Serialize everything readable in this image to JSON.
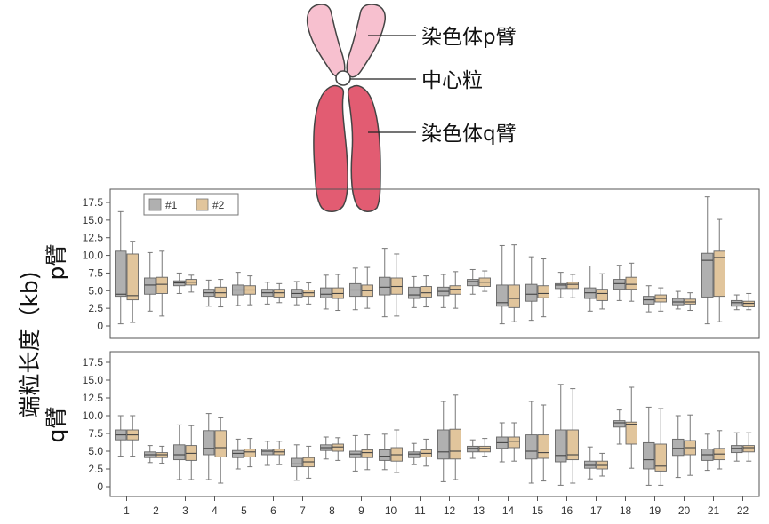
{
  "diagram": {
    "labels": {
      "p_arm": "染色体p臂",
      "centromere": "中心粒",
      "q_arm": "染色体q臂"
    },
    "colors": {
      "p_arm": "#f7c0cf",
      "q_arm": "#e25c72",
      "outline": "#444444"
    }
  },
  "axis": {
    "ylabel": "端粒长度（kb)"
  },
  "chart_data": [
    {
      "type": "box",
      "panel_label": "p臂",
      "categories": [
        "1",
        "2",
        "3",
        "4",
        "5",
        "6",
        "7",
        "8",
        "9",
        "10",
        "11",
        "12",
        "13",
        "14",
        "15",
        "16",
        "17",
        "18",
        "19",
        "20",
        "21",
        "22"
      ],
      "ylim": [
        0,
        18.5
      ],
      "yticks": [
        0,
        2.5,
        5.0,
        7.5,
        10.0,
        12.5,
        15.0,
        17.5
      ],
      "ytick_labels": [
        "0",
        "2.5",
        "5.0",
        "7.5",
        "10.0",
        "12.5",
        "15.0",
        "17.5"
      ],
      "grid": false,
      "legend": {
        "position": "top-left",
        "entries": [
          "#1",
          "#2"
        ]
      },
      "series": [
        {
          "name": "#1",
          "color": "#b0b0b0",
          "boxes": [
            [
              0.3,
              4.2,
              4.5,
              10.6,
              16.2
            ],
            [
              2.1,
              4.5,
              5.8,
              6.8,
              10.4
            ],
            [
              4.6,
              5.7,
              6.1,
              6.4,
              7.5
            ],
            [
              2.8,
              4.2,
              4.7,
              5.2,
              6.5
            ],
            [
              2.9,
              4.4,
              5.1,
              5.8,
              7.6
            ],
            [
              3.1,
              4.2,
              4.7,
              5.2,
              6.2
            ],
            [
              3.0,
              4.1,
              4.6,
              5.2,
              6.3
            ],
            [
              2.4,
              4.0,
              4.5,
              5.4,
              7.2
            ],
            [
              2.3,
              4.2,
              5.1,
              6.0,
              8.2
            ],
            [
              1.3,
              4.4,
              5.5,
              6.9,
              11.0
            ],
            [
              2.6,
              3.9,
              4.4,
              5.5,
              7.0
            ],
            [
              2.6,
              4.3,
              4.9,
              5.5,
              7.3
            ],
            [
              4.5,
              5.7,
              6.3,
              6.6,
              8.0
            ],
            [
              0.3,
              2.8,
              3.3,
              5.8,
              11.4
            ],
            [
              0.8,
              3.5,
              4.5,
              5.9,
              9.8
            ],
            [
              4.0,
              5.3,
              5.8,
              6.0,
              7.6
            ],
            [
              2.1,
              3.9,
              4.7,
              5.4,
              8.5
            ],
            [
              3.6,
              5.2,
              6.0,
              6.6,
              8.6
            ],
            [
              2.0,
              3.1,
              3.7,
              4.2,
              5.7
            ],
            [
              2.4,
              3.0,
              3.4,
              3.9,
              4.9
            ],
            [
              0.3,
              4.1,
              9.3,
              10.3,
              18.3
            ],
            [
              2.3,
              2.8,
              3.3,
              3.6,
              4.4
            ]
          ]
        },
        {
          "name": "#2",
          "color": "#e1c59c",
          "boxes": [
            [
              0.5,
              3.7,
              4.3,
              10.2,
              12.0
            ],
            [
              1.4,
              4.6,
              5.9,
              6.9,
              10.6
            ],
            [
              4.8,
              5.8,
              6.2,
              6.6,
              7.2
            ],
            [
              2.7,
              4.1,
              4.7,
              5.5,
              6.6
            ],
            [
              3.0,
              4.5,
              5.1,
              5.7,
              7.1
            ],
            [
              3.3,
              4.1,
              4.7,
              5.2,
              6.0
            ],
            [
              3.1,
              4.2,
              4.7,
              5.1,
              6.1
            ],
            [
              2.2,
              3.9,
              4.6,
              5.4,
              7.3
            ],
            [
              2.5,
              4.2,
              5.0,
              5.8,
              8.3
            ],
            [
              1.4,
              4.5,
              5.6,
              6.8,
              10.2
            ],
            [
              2.7,
              4.1,
              4.7,
              5.6,
              7.1
            ],
            [
              2.5,
              4.5,
              5.2,
              5.7,
              7.7
            ],
            [
              4.9,
              5.6,
              6.2,
              6.8,
              7.8
            ],
            [
              0.6,
              2.6,
              3.9,
              5.8,
              11.5
            ],
            [
              1.3,
              4.0,
              4.6,
              5.7,
              9.5
            ],
            [
              4.0,
              5.3,
              5.9,
              6.2,
              7.3
            ],
            [
              2.4,
              3.6,
              4.6,
              5.2,
              7.4
            ],
            [
              3.5,
              5.2,
              5.9,
              6.9,
              8.9
            ],
            [
              2.1,
              3.4,
              3.9,
              4.4,
              5.4
            ],
            [
              2.2,
              3.1,
              3.4,
              3.8,
              4.7
            ],
            [
              0.6,
              4.2,
              9.7,
              10.6,
              15.1
            ],
            [
              2.3,
              2.7,
              3.2,
              3.5,
              4.6
            ]
          ]
        }
      ]
    },
    {
      "type": "box",
      "panel_label": "q臂",
      "categories": [
        "1",
        "2",
        "3",
        "4",
        "5",
        "6",
        "7",
        "8",
        "9",
        "10",
        "11",
        "12",
        "13",
        "14",
        "15",
        "16",
        "17",
        "18",
        "19",
        "20",
        "21",
        "22"
      ],
      "xlabel": "",
      "ylim": [
        0,
        18.5
      ],
      "yticks": [
        0,
        2.5,
        5.0,
        7.5,
        10.0,
        12.5,
        15.0,
        17.5
      ],
      "ytick_labels": [
        "0",
        "2.5",
        "5.0",
        "7.5",
        "10.0",
        "12.5",
        "15.0",
        "17.5"
      ],
      "grid": false,
      "series": [
        {
          "name": "#1",
          "color": "#b0b0b0",
          "boxes": [
            [
              4.3,
              6.6,
              7.3,
              8.0,
              10.0
            ],
            [
              3.4,
              4.1,
              4.5,
              4.9,
              5.8
            ],
            [
              1.0,
              3.8,
              4.5,
              5.9,
              8.7
            ],
            [
              1.0,
              4.5,
              5.4,
              7.9,
              10.3
            ],
            [
              2.5,
              4.1,
              4.7,
              5.1,
              6.7
            ],
            [
              3.0,
              4.5,
              5.0,
              5.3,
              6.4
            ],
            [
              0.9,
              2.8,
              3.2,
              4.0,
              5.9
            ],
            [
              3.9,
              5.1,
              5.5,
              5.9,
              7.0
            ],
            [
              2.2,
              4.1,
              4.6,
              5.0,
              7.2
            ],
            [
              2.4,
              3.7,
              4.3,
              5.2,
              7.4
            ],
            [
              3.1,
              4.1,
              4.6,
              4.9,
              6.1
            ],
            [
              0.7,
              3.9,
              4.9,
              8.0,
              12.0
            ],
            [
              4.0,
              4.9,
              5.4,
              5.7,
              6.6
            ],
            [
              3.5,
              5.4,
              6.2,
              7.0,
              9.0
            ],
            [
              0.5,
              3.9,
              5.0,
              7.3,
              12.0
            ],
            [
              0.2,
              3.5,
              4.4,
              8.0,
              14.4
            ],
            [
              1.1,
              2.6,
              3.0,
              3.6,
              5.6
            ],
            [
              6.0,
              8.4,
              9.0,
              9.3,
              10.8
            ],
            [
              0.2,
              2.5,
              3.8,
              6.2,
              11.2
            ],
            [
              1.3,
              4.4,
              5.4,
              6.7,
              10.0
            ],
            [
              2.3,
              3.7,
              4.5,
              5.3,
              7.4
            ],
            [
              3.6,
              4.8,
              5.4,
              5.8,
              7.6
            ]
          ]
        },
        {
          "name": "#2",
          "color": "#e1c59c",
          "boxes": [
            [
              4.3,
              6.6,
              7.3,
              8.0,
              10.0
            ],
            [
              3.3,
              4.1,
              4.5,
              4.8,
              5.7
            ],
            [
              1.0,
              3.7,
              4.7,
              5.8,
              8.6
            ],
            [
              0.5,
              4.2,
              5.5,
              7.9,
              9.7
            ],
            [
              2.8,
              4.2,
              4.9,
              5.3,
              6.8
            ],
            [
              3.1,
              4.5,
              4.9,
              5.3,
              6.4
            ],
            [
              1.2,
              2.8,
              3.5,
              4.1,
              5.7
            ],
            [
              3.7,
              5.0,
              5.6,
              6.0,
              6.9
            ],
            [
              2.4,
              4.1,
              4.8,
              5.2,
              7.3
            ],
            [
              2.0,
              3.6,
              4.5,
              5.5,
              8.0
            ],
            [
              2.9,
              4.2,
              4.7,
              5.2,
              6.7
            ],
            [
              1.0,
              3.9,
              5.0,
              8.1,
              12.9
            ],
            [
              4.3,
              4.9,
              5.4,
              5.7,
              6.8
            ],
            [
              3.6,
              5.5,
              6.4,
              7.0,
              9.0
            ],
            [
              0.8,
              4.0,
              4.8,
              7.3,
              11.5
            ],
            [
              0.5,
              3.8,
              4.5,
              8.0,
              13.8
            ],
            [
              1.5,
              2.5,
              3.0,
              3.6,
              4.7
            ],
            [
              2.6,
              6.0,
              8.8,
              9.1,
              14.0
            ],
            [
              0.2,
              2.2,
              2.9,
              6.0,
              11.0
            ],
            [
              1.6,
              4.5,
              5.5,
              6.5,
              10.1
            ],
            [
              2.5,
              3.8,
              4.6,
              5.4,
              7.9
            ],
            [
              3.6,
              4.9,
              5.5,
              5.8,
              7.6
            ]
          ]
        }
      ]
    }
  ]
}
